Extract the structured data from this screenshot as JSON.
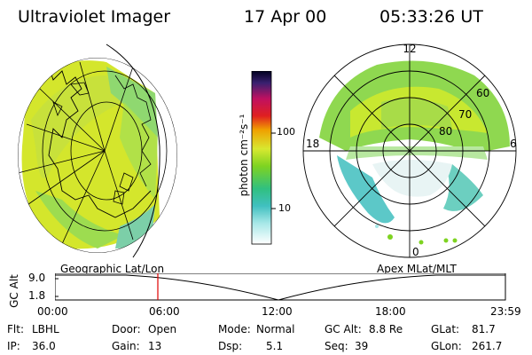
{
  "header": {
    "instrument": "Ultraviolet Imager",
    "date": "17 Apr 00",
    "time": "05:33:26 UT"
  },
  "colorbar": {
    "unit": "photon cm⁻²s⁻¹",
    "ticks": [
      "100",
      "10"
    ]
  },
  "polar_plot": {
    "mlt_labels": {
      "top": "12",
      "left": "18",
      "right": "6",
      "bottom": "0"
    },
    "lat_labels": [
      "60",
      "70",
      "80"
    ]
  },
  "timeline": {
    "left_title": "Geographic Lat/Lon",
    "right_title": "Apex MLat/MLT",
    "axis_label": "GC Alt",
    "y_ticks": [
      "9.0",
      "1.8"
    ],
    "x_ticks": [
      "00:00",
      "06:00",
      "12:00",
      "18:00",
      "23:59"
    ],
    "marker_time": "05:33"
  },
  "status": {
    "filter_label": "Flt:",
    "filter_value": "LBHL",
    "ip_label": "IP:",
    "ip_value": "36.0",
    "door_label": "Door:",
    "door_value": "Open",
    "gain_label": "Gain:",
    "gain_value": "13",
    "mode_label": "Mode:",
    "mode_value": "Normal",
    "dsp_label": "Dsp:",
    "dsp_value": "5.1",
    "gcalt_label": "GC Alt:",
    "gcalt_value": "8.8 Re",
    "seq_label": "Seq:",
    "seq_value": "39",
    "glat_label": "GLat:",
    "glat_value": "81.7",
    "glon_label": "GLon:",
    "glon_value": "261.7"
  },
  "colors": {
    "aurora_green": "#7ed321",
    "aurora_yellow": "#d8e830",
    "aurora_cyan": "#5cc8c8",
    "marker": "#e00000"
  }
}
